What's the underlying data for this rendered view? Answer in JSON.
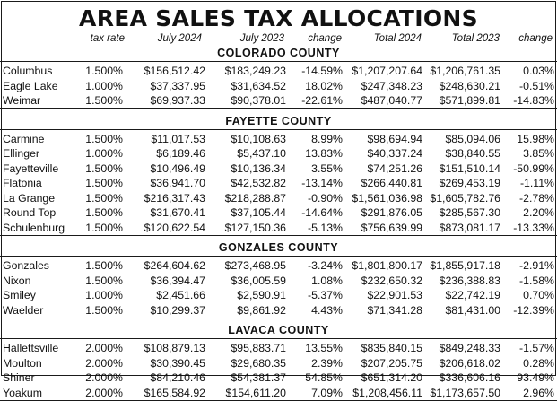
{
  "title": "AREA SALES TAX ALLOCATIONS",
  "headers": {
    "rate": "tax rate",
    "jul24": "July 2024",
    "jul23": "July 2023",
    "chg": "change",
    "tot24": "Total 2024",
    "tot23": "Total 2023",
    "tchg": "change"
  },
  "counties": [
    {
      "name": "COLORADO COUNTY",
      "rows": [
        {
          "city": "Columbus",
          "rate": "1.500%",
          "jul24": "$156,512.42",
          "jul23": "$183,249.23",
          "chg": "-14.59%",
          "tot24": "$1,207,207.64",
          "tot23": "$1,206,761.35",
          "tchg": "0.03%"
        },
        {
          "city": "Eagle Lake",
          "rate": "1.000%",
          "jul24": "$37,337.95",
          "jul23": "$31,634.52",
          "chg": "18.02%",
          "tot24": "$247,348.23",
          "tot23": "$248,630.21",
          "tchg": "-0.51%"
        },
        {
          "city": "Weimar",
          "rate": "1.500%",
          "jul24": "$69,937.33",
          "jul23": "$90,378.01",
          "chg": "-22.61%",
          "tot24": "$487,040.77",
          "tot23": "$571,899.81",
          "tchg": "-14.83%"
        }
      ]
    },
    {
      "name": "FAYETTE COUNTY",
      "rows": [
        {
          "city": "Carmine",
          "rate": "1.500%",
          "jul24": "$11,017.53",
          "jul23": "$10,108.63",
          "chg": "8.99%",
          "tot24": "$98,694.94",
          "tot23": "$85,094.06",
          "tchg": "15.98%"
        },
        {
          "city": "Ellinger",
          "rate": "1.000%",
          "jul24": "$6,189.46",
          "jul23": "$5,437.10",
          "chg": "13.83%",
          "tot24": "$40,337.24",
          "tot23": "$38,840.55",
          "tchg": "3.85%"
        },
        {
          "city": "Fayetteville",
          "rate": "1.500%",
          "jul24": "$10,496.49",
          "jul23": "$10,136.34",
          "chg": "3.55%",
          "tot24": "$74,251.26",
          "tot23": "$151,510.14",
          "tchg": "-50.99%"
        },
        {
          "city": "Flatonia",
          "rate": "1.500%",
          "jul24": "$36,941.70",
          "jul23": "$42,532.82",
          "chg": "-13.14%",
          "tot24": "$266,440.81",
          "tot23": "$269,453.19",
          "tchg": "-1.11%"
        },
        {
          "city": "La Grange",
          "rate": "1.500%",
          "jul24": "$216,317.43",
          "jul23": "$218,288.87",
          "chg": "-0.90%",
          "tot24": "$1,561,036.98",
          "tot23": "$1,605,782.76",
          "tchg": "-2.78%"
        },
        {
          "city": "Round Top",
          "rate": "1.500%",
          "jul24": "$31,670.41",
          "jul23": "$37,105.44",
          "chg": "-14.64%",
          "tot24": "$291,876.05",
          "tot23": "$285,567.30",
          "tchg": "2.20%"
        },
        {
          "city": "Schulenburg",
          "rate": "1.500%",
          "jul24": "$120,622.54",
          "jul23": "$127,150.36",
          "chg": "-5.13%",
          "tot24": "$756,639.99",
          "tot23": "$873,081.17",
          "tchg": "-13.33%"
        }
      ]
    },
    {
      "name": "GONZALES COUNTY",
      "rows": [
        {
          "city": "Gonzales",
          "rate": "1.500%",
          "jul24": "$264,604.62",
          "jul23": "$273,468.95",
          "chg": "-3.24%",
          "tot24": "$1,801,800.17",
          "tot23": "$1,855,917.18",
          "tchg": "-2.91%"
        },
        {
          "city": "Nixon",
          "rate": "1.500%",
          "jul24": "$36,394.47",
          "jul23": "$36,005.59",
          "chg": "1.08%",
          "tot24": "$232,650.32",
          "tot23": "$236,388.83",
          "tchg": "-1.58%"
        },
        {
          "city": "Smiley",
          "rate": "1.000%",
          "jul24": "$2,451.66",
          "jul23": "$2,590.91",
          "chg": "-5.37%",
          "tot24": "$22,901.53",
          "tot23": "$22,742.19",
          "tchg": "0.70%"
        },
        {
          "city": "Waelder",
          "rate": "1.500%",
          "jul24": "$10,299.37",
          "jul23": "$9,861.92",
          "chg": "4.43%",
          "tot24": "$71,341.28",
          "tot23": "$81,431.00",
          "tchg": "-12.39%"
        }
      ]
    },
    {
      "name": "LAVACA COUNTY",
      "rows": [
        {
          "city": "Hallettsville",
          "rate": "2.000%",
          "jul24": "$108,879.13",
          "jul23": "$95,883.71",
          "chg": "13.55%",
          "tot24": "$835,840.15",
          "tot23": "$849,248.33",
          "tchg": "-1.57%"
        },
        {
          "city": "Moulton",
          "rate": "2.000%",
          "jul24": "$30,390.45",
          "jul23": "$29,680.35",
          "chg": "2.39%",
          "tot24": "$207,205.75",
          "tot23": "$206,618.02",
          "tchg": "0.28%"
        },
        {
          "city": "Shiner",
          "rate": "2.000%",
          "jul24": "$84,210.46",
          "jul23": "$54,381.37",
          "chg": "54.85%",
          "tot24": "$651,314.20",
          "tot23": "$336,606.16",
          "tchg": "93.49%"
        },
        {
          "city": "Yoakum",
          "rate": "2.000%",
          "jul24": "$165,584.92",
          "jul23": "$154,611.20",
          "chg": "7.09%",
          "tot24": "$1,208,456.11",
          "tot23": "$1,173,657.50",
          "tchg": "2.96%"
        }
      ]
    }
  ]
}
